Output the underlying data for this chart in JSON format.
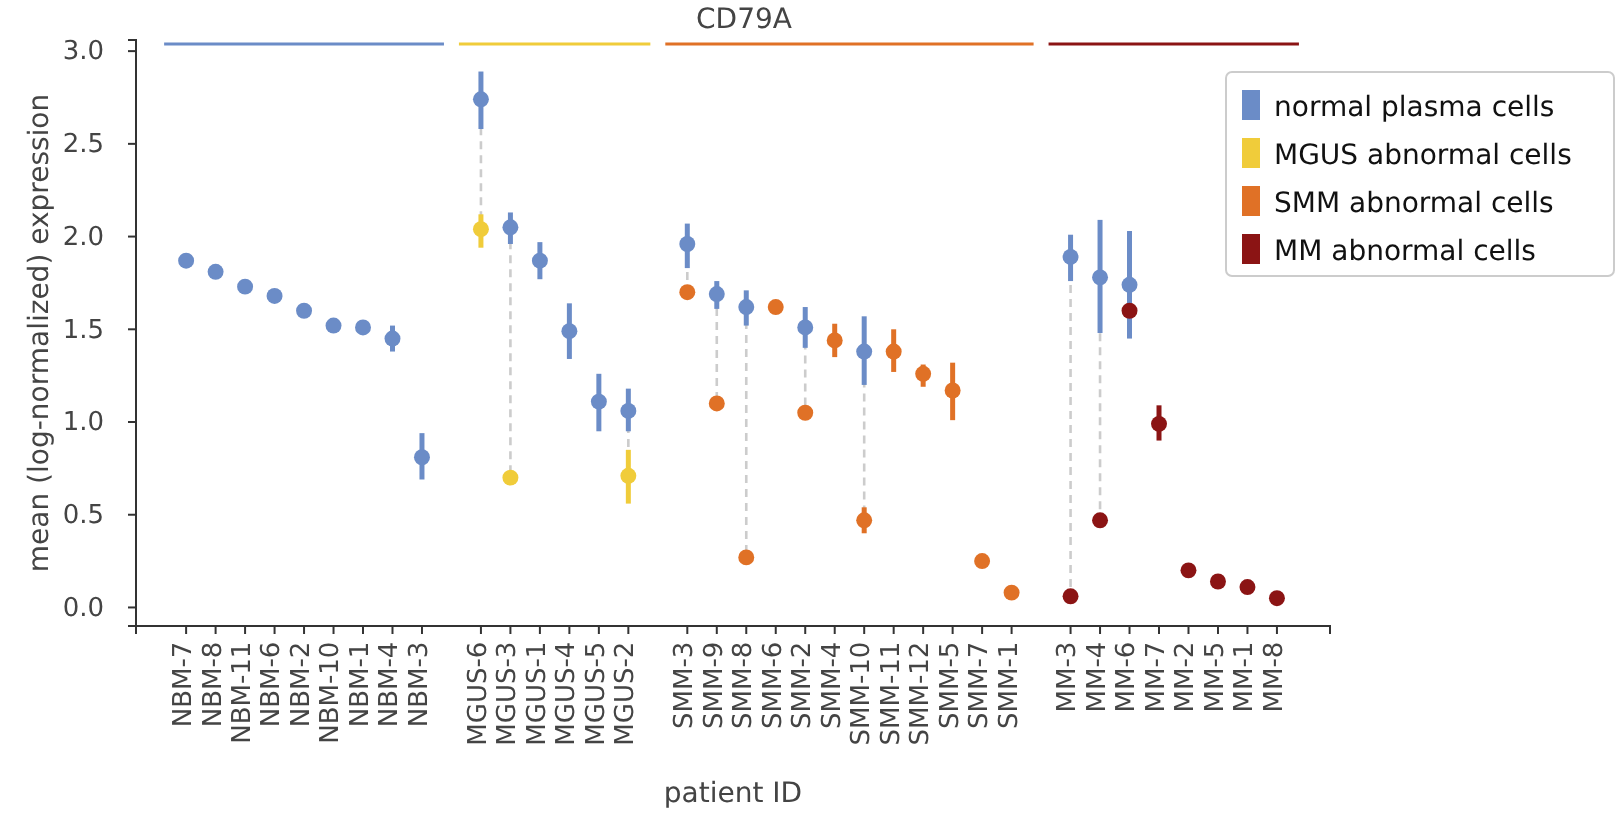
{
  "chart_data": {
    "type": "scatter",
    "title": "CD79A",
    "xlabel": "patient ID",
    "ylabel": "mean (log-normalized) expression",
    "categories": [
      "NBM-7",
      "NBM-8",
      "NBM-11",
      "NBM-6",
      "NBM-2",
      "NBM-10",
      "NBM-1",
      "NBM-4",
      "NBM-3",
      null,
      "MGUS-6",
      "MGUS-3",
      "MGUS-1",
      "MGUS-4",
      "MGUS-5",
      "MGUS-2",
      null,
      "SMM-3",
      "SMM-9",
      "SMM-8",
      "SMM-6",
      "SMM-2",
      "SMM-4",
      "SMM-10",
      "SMM-11",
      "SMM-12",
      "SMM-5",
      "SMM-7",
      "SMM-1",
      null,
      "MM-3",
      "MM-4",
      "MM-6",
      "MM-7",
      "MM-2",
      "MM-5",
      "MM-1",
      "MM-8"
    ],
    "ylim": [
      -0.1,
      3.06
    ],
    "yticks": [
      {
        "value": 0,
        "label": "0.0"
      },
      0.5,
      {
        "value": 1,
        "label": "1.0"
      },
      1.5,
      {
        "value": 2,
        "label": "2.0"
      },
      2.5,
      {
        "value": 3,
        "label": "3.0"
      }
    ],
    "grid": false,
    "legend": "top right",
    "marker": "circle",
    "series": [
      {
        "name": "normal plasma cells",
        "color": "#6b8cc7",
        "values": [
          1.87,
          1.81,
          1.73,
          1.68,
          1.6,
          1.52,
          1.51,
          1.45,
          0.81,
          null,
          2.74,
          2.05,
          1.87,
          1.49,
          1.11,
          1.06,
          null,
          1.96,
          1.69,
          1.62,
          null,
          1.51,
          null,
          1.38,
          null,
          null,
          null,
          null,
          null,
          null,
          1.89,
          1.78,
          1.74,
          null,
          null,
          null,
          null,
          null
        ],
        "errors": [
          null,
          null,
          null,
          null,
          null,
          null,
          null,
          [
            1.38,
            1.52
          ],
          [
            0.69,
            0.94
          ],
          null,
          [
            2.58,
            2.89
          ],
          [
            1.96,
            2.13
          ],
          [
            1.77,
            1.97
          ],
          [
            1.34,
            1.64
          ],
          [
            0.95,
            1.26
          ],
          [
            0.95,
            1.18
          ],
          null,
          [
            1.83,
            2.07
          ],
          [
            1.61,
            1.76
          ],
          [
            1.52,
            1.71
          ],
          null,
          [
            1.4,
            1.62
          ],
          null,
          [
            1.2,
            1.57
          ],
          null,
          null,
          null,
          null,
          null,
          null,
          [
            1.76,
            2.01
          ],
          [
            1.48,
            2.09
          ],
          [
            1.45,
            2.03
          ],
          null,
          null,
          null,
          null,
          null
        ]
      },
      {
        "name": "MGUS abnormal cells",
        "color": "#f0cc3a",
        "values": [
          null,
          null,
          null,
          null,
          null,
          null,
          null,
          null,
          null,
          null,
          2.04,
          0.7,
          null,
          null,
          null,
          0.71,
          null,
          null,
          null,
          null,
          null,
          null,
          null,
          null,
          null,
          null,
          null,
          null,
          null,
          null,
          null,
          null,
          null,
          null,
          null,
          null,
          null,
          null
        ],
        "errors": [
          null,
          null,
          null,
          null,
          null,
          null,
          null,
          null,
          null,
          null,
          [
            1.94,
            2.12
          ],
          null,
          null,
          null,
          null,
          [
            0.56,
            0.85
          ],
          null,
          null,
          null,
          null,
          null,
          null,
          null,
          null,
          null,
          null,
          null,
          null,
          null,
          null,
          null,
          null,
          null,
          null,
          null,
          null,
          null,
          null
        ]
      },
      {
        "name": "SMM abnormal cells",
        "color": "#e07126",
        "values": [
          null,
          null,
          null,
          null,
          null,
          null,
          null,
          null,
          null,
          null,
          null,
          null,
          null,
          null,
          null,
          null,
          null,
          1.7,
          1.1,
          0.27,
          1.62,
          1.05,
          1.44,
          0.47,
          1.38,
          1.26,
          1.17,
          0.25,
          0.08,
          null,
          null,
          null,
          null,
          null,
          null,
          null,
          null,
          null
        ],
        "errors": [
          null,
          null,
          null,
          null,
          null,
          null,
          null,
          null,
          null,
          null,
          null,
          null,
          null,
          null,
          null,
          null,
          null,
          null,
          null,
          null,
          null,
          null,
          [
            1.35,
            1.53
          ],
          [
            0.4,
            0.54
          ],
          [
            1.27,
            1.5
          ],
          [
            1.19,
            1.31
          ],
          [
            1.01,
            1.32
          ],
          null,
          null,
          null,
          null,
          null,
          null,
          null,
          null,
          null,
          null,
          null
        ]
      },
      {
        "name": "MM abnormal cells",
        "color": "#8b1414",
        "values": [
          null,
          null,
          null,
          null,
          null,
          null,
          null,
          null,
          null,
          null,
          null,
          null,
          null,
          null,
          null,
          null,
          null,
          null,
          null,
          null,
          null,
          null,
          null,
          null,
          null,
          null,
          null,
          null,
          null,
          null,
          0.06,
          0.47,
          1.6,
          0.99,
          0.2,
          0.14,
          0.11,
          0.05
        ],
        "errors": [
          null,
          null,
          null,
          null,
          null,
          null,
          null,
          null,
          null,
          null,
          null,
          null,
          null,
          null,
          null,
          null,
          null,
          null,
          null,
          null,
          null,
          null,
          null,
          null,
          null,
          null,
          null,
          null,
          null,
          null,
          null,
          null,
          null,
          [
            0.9,
            1.09
          ],
          null,
          null,
          null,
          null
        ]
      }
    ]
  }
}
